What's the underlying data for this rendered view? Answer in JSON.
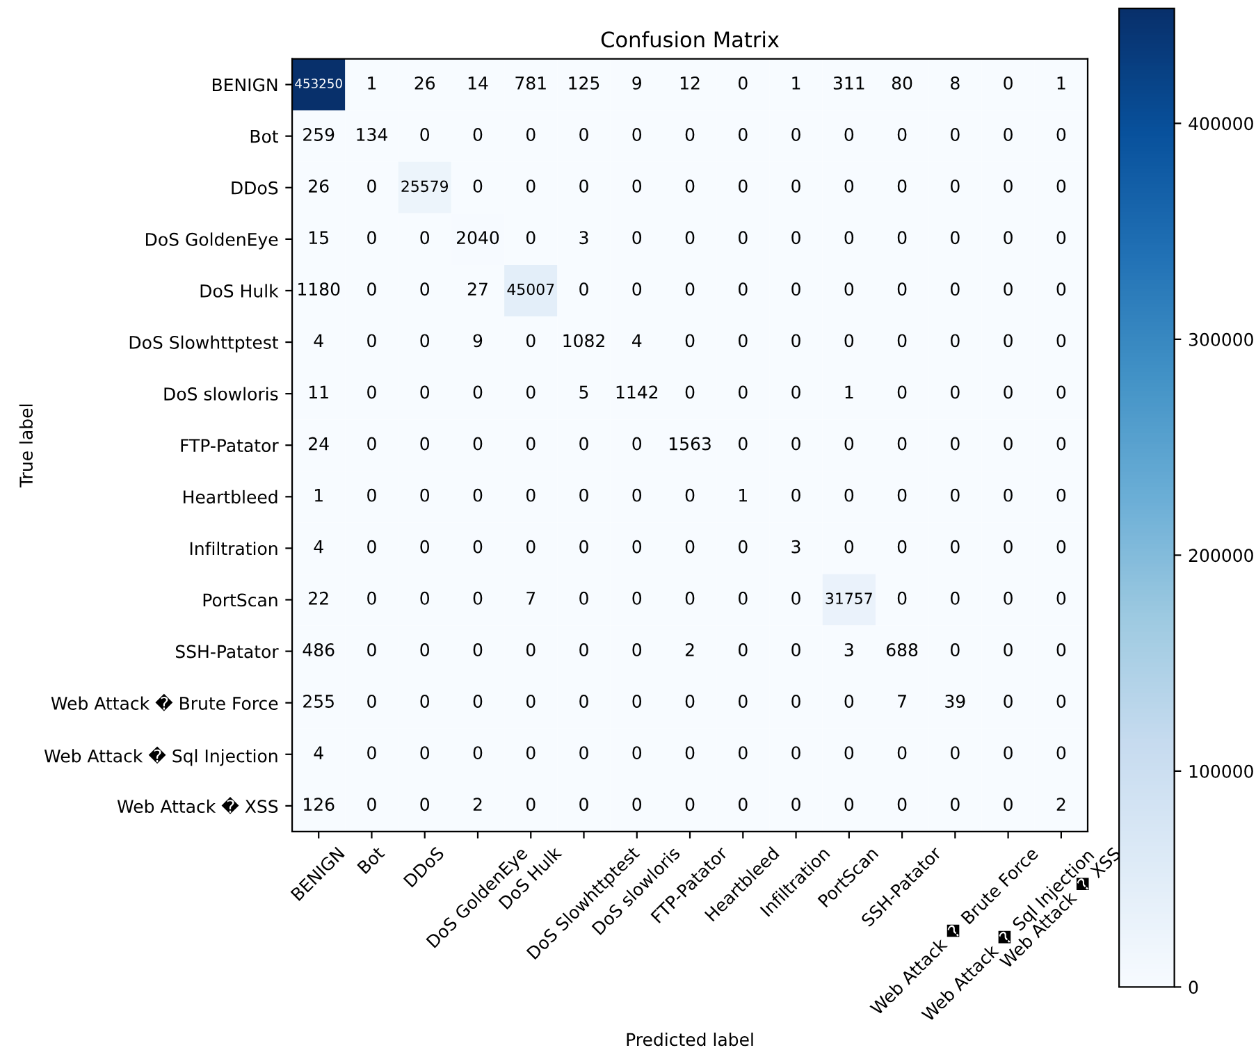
{
  "chart_data": {
    "type": "heatmap",
    "title": "Confusion Matrix",
    "xlabel": "Predicted label",
    "ylabel": "True label",
    "categories": [
      "BENIGN",
      "Bot",
      "DDoS",
      "DoS GoldenEye",
      "DoS Hulk",
      "DoS Slowhttptest",
      "DoS slowloris",
      "FTP-Patator",
      "Heartbleed",
      "Infiltration",
      "PortScan",
      "SSH-Patator",
      "Web Attack � Brute Force",
      "Web Attack � Sql Injection",
      "Web Attack � XSS"
    ],
    "y_categories": [
      "BENIGN",
      "Bot",
      "DDoS",
      "DoS GoldenEye",
      "DoS Hulk",
      "DoS Slowhttptest",
      "DoS slowloris",
      "FTP-Patator",
      "Heartbleed",
      "Infiltration",
      "PortScan",
      "SSH-Patator",
      "Web Attack � Brute Force",
      "Web Attack � Sql Injection",
      "Web Attack � XSS"
    ],
    "cells": [
      [
        453250,
        1,
        26,
        14,
        781,
        125,
        9,
        12,
        0,
        1,
        311,
        80,
        8,
        0,
        1
      ],
      [
        259,
        134,
        0,
        0,
        0,
        0,
        0,
        0,
        0,
        0,
        0,
        0,
        0,
        0,
        0
      ],
      [
        26,
        0,
        25579,
        0,
        0,
        0,
        0,
        0,
        0,
        0,
        0,
        0,
        0,
        0,
        0
      ],
      [
        15,
        0,
        0,
        2040,
        0,
        3,
        0,
        0,
        0,
        0,
        0,
        0,
        0,
        0,
        0
      ],
      [
        1180,
        0,
        0,
        27,
        45007,
        0,
        0,
        0,
        0,
        0,
        0,
        0,
        0,
        0,
        0
      ],
      [
        4,
        0,
        0,
        9,
        0,
        1082,
        4,
        0,
        0,
        0,
        0,
        0,
        0,
        0,
        0
      ],
      [
        11,
        0,
        0,
        0,
        0,
        5,
        1142,
        0,
        0,
        0,
        1,
        0,
        0,
        0,
        0
      ],
      [
        24,
        0,
        0,
        0,
        0,
        0,
        0,
        1563,
        0,
        0,
        0,
        0,
        0,
        0,
        0
      ],
      [
        1,
        0,
        0,
        0,
        0,
        0,
        0,
        0,
        1,
        0,
        0,
        0,
        0,
        0,
        0
      ],
      [
        4,
        0,
        0,
        0,
        0,
        0,
        0,
        0,
        0,
        3,
        0,
        0,
        0,
        0,
        0
      ],
      [
        22,
        0,
        0,
        0,
        7,
        0,
        0,
        0,
        0,
        0,
        31757,
        0,
        0,
        0,
        0
      ],
      [
        486,
        0,
        0,
        0,
        0,
        0,
        0,
        2,
        0,
        0,
        3,
        688,
        0,
        0,
        0
      ],
      [
        255,
        0,
        0,
        0,
        0,
        0,
        0,
        0,
        0,
        0,
        0,
        7,
        39,
        0,
        0
      ],
      [
        4,
        0,
        0,
        0,
        0,
        0,
        0,
        0,
        0,
        0,
        0,
        0,
        0,
        0,
        0
      ],
      [
        126,
        0,
        0,
        2,
        0,
        0,
        0,
        0,
        0,
        0,
        0,
        0,
        0,
        0,
        2
      ]
    ],
    "clim": [
      0,
      453250
    ],
    "cticks": [
      0,
      100000,
      200000,
      300000,
      400000
    ],
    "data_labels": true,
    "grid": false
  }
}
